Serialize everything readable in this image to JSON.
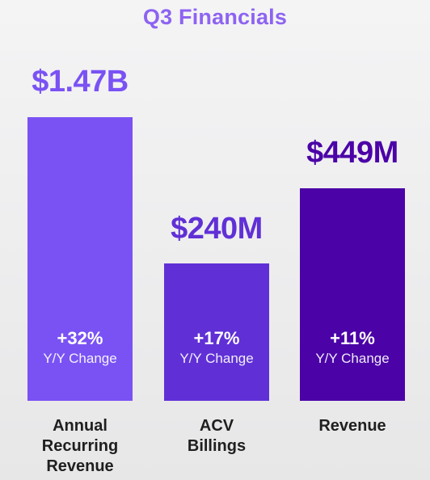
{
  "title": "Q3 Financials",
  "chart_data": {
    "type": "bar",
    "title": "Q3 Financials",
    "categories": [
      "Annual Recurring Revenue",
      "ACV Billings",
      "Revenue"
    ],
    "category_lines": [
      [
        "Annual",
        "Recurring",
        "Revenue"
      ],
      [
        "ACV",
        "Billings"
      ],
      [
        "Revenue"
      ]
    ],
    "value_labels": [
      "$1.47B",
      "$240M",
      "$449M"
    ],
    "change_pct": [
      "+32%",
      "+17%",
      "+11%"
    ],
    "change_label": "Y/Y Change",
    "colors": [
      "#7a52f4",
      "#6030d6",
      "#4b02a7"
    ],
    "label_colors": [
      "#7a52f4",
      "#6030d6",
      "#4b02a7"
    ]
  }
}
